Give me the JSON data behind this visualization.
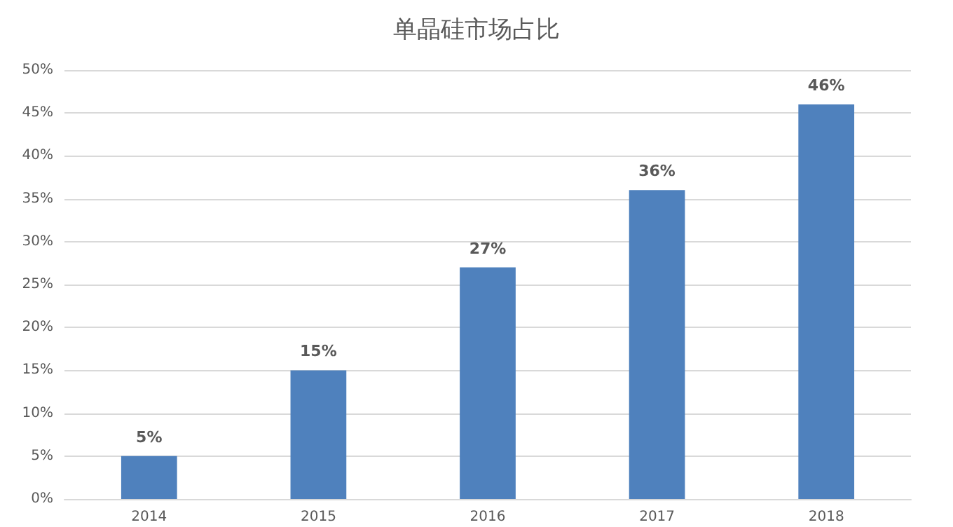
{
  "chart_data": {
    "type": "bar",
    "title": "单晶硅市场占比",
    "categories": [
      "2014",
      "2015",
      "2016",
      "2017",
      "2018"
    ],
    "values": [
      5,
      15,
      27,
      36,
      46
    ],
    "value_labels": [
      "5%",
      "15%",
      "27%",
      "36%",
      "46%"
    ],
    "color": "#4f81bd",
    "ylim": [
      0,
      50
    ],
    "yticks": [
      {
        "value": 0,
        "label": "0%"
      },
      {
        "value": 5,
        "label": "5%"
      },
      {
        "value": 10,
        "label": "10%"
      },
      {
        "value": 15,
        "label": "15%"
      },
      {
        "value": 20,
        "label": "20%"
      },
      {
        "value": 25,
        "label": "25%"
      },
      {
        "value": 30,
        "label": "30%"
      },
      {
        "value": 35,
        "label": "35%"
      },
      {
        "value": 40,
        "label": "40%"
      },
      {
        "value": 45,
        "label": "45%"
      },
      {
        "value": 50,
        "label": "50%"
      }
    ],
    "grid": "y"
  }
}
